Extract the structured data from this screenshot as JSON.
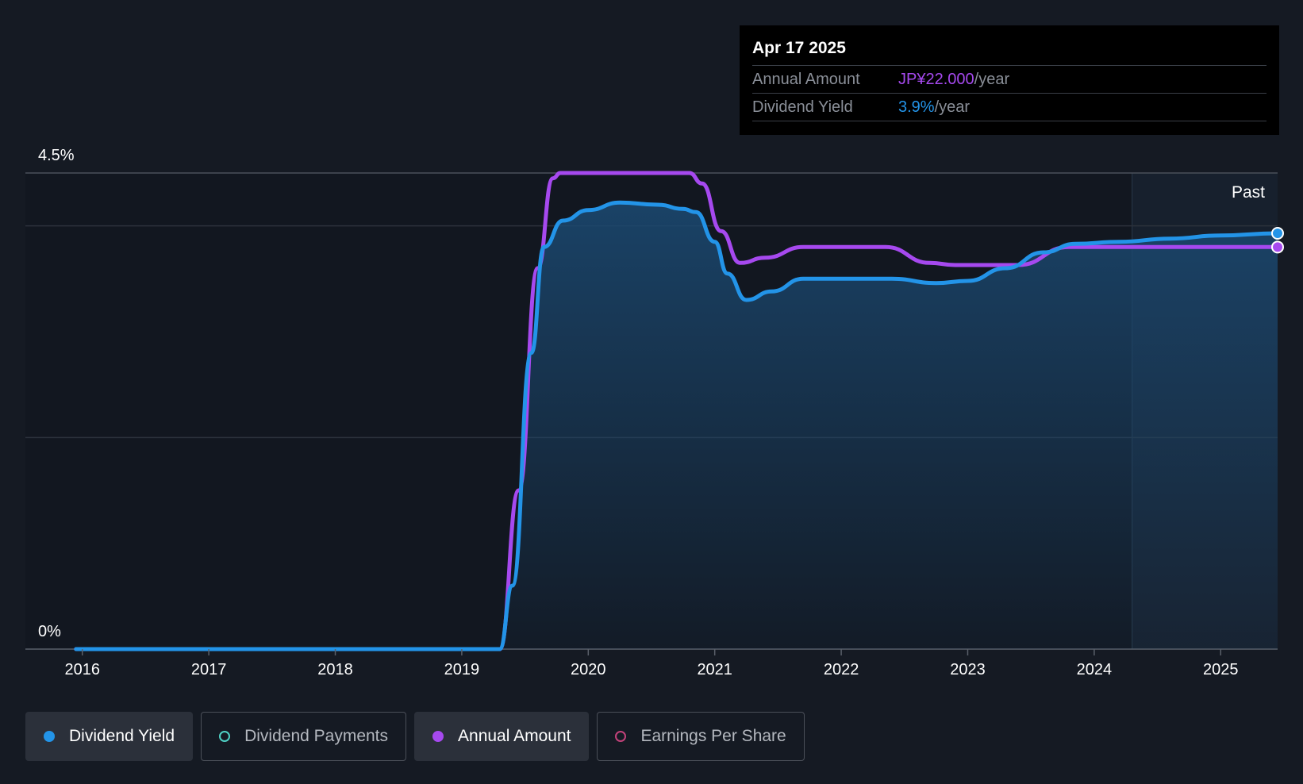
{
  "tooltip": {
    "date": "Apr 17 2025",
    "rows": [
      {
        "label": "Annual Amount",
        "value": "JP¥22.000",
        "unit": "/year"
      },
      {
        "label": "Dividend Yield",
        "value": "3.9%",
        "unit": "/year"
      }
    ]
  },
  "legend": [
    {
      "label": "Dividend Yield",
      "active": true,
      "filled": true,
      "color": "#2394e8"
    },
    {
      "label": "Dividend Payments",
      "active": false,
      "filled": false,
      "color": "#4fd1c5"
    },
    {
      "label": "Annual Amount",
      "active": true,
      "filled": true,
      "color": "#a649ef"
    },
    {
      "label": "Earnings Per Share",
      "active": false,
      "filled": false,
      "color": "#c2427a"
    }
  ],
  "colors": {
    "yield": "#2394e8",
    "amount": "#a649ef",
    "grid": "#2c323c",
    "axis": "#5a606a",
    "background": "#151a23"
  },
  "chart_data": {
    "type": "line",
    "title": "",
    "xlabel": "",
    "ylabel": "",
    "y_tick_labels": [
      "4.5%",
      "0%"
    ],
    "y_ticks": [
      4.5,
      0
    ],
    "ylim": [
      0,
      4.5
    ],
    "xlim": [
      2015.55,
      2025.45
    ],
    "x_ticks": [
      2016,
      2017,
      2018,
      2019,
      2020,
      2021,
      2022,
      2023,
      2024,
      2025
    ],
    "x_tick_labels": [
      "2016",
      "2017",
      "2018",
      "2019",
      "2020",
      "2021",
      "2022",
      "2023",
      "2024",
      "2025"
    ],
    "past_label": "Past",
    "past_region_start": 2024.3,
    "series": [
      {
        "name": "Dividend Yield",
        "fill": true,
        "points": [
          [
            2015.95,
            0
          ],
          [
            2019.3,
            0
          ],
          [
            2019.4,
            0.6
          ],
          [
            2019.55,
            2.8
          ],
          [
            2019.65,
            3.8
          ],
          [
            2019.8,
            4.05
          ],
          [
            2020.0,
            4.15
          ],
          [
            2020.25,
            4.22
          ],
          [
            2020.55,
            4.2
          ],
          [
            2020.75,
            4.16
          ],
          [
            2020.85,
            4.13
          ],
          [
            2021.0,
            3.85
          ],
          [
            2021.1,
            3.55
          ],
          [
            2021.25,
            3.3
          ],
          [
            2021.45,
            3.38
          ],
          [
            2021.7,
            3.5
          ],
          [
            2022.0,
            3.5
          ],
          [
            2022.4,
            3.5
          ],
          [
            2022.75,
            3.46
          ],
          [
            2023.0,
            3.48
          ],
          [
            2023.3,
            3.6
          ],
          [
            2023.6,
            3.75
          ],
          [
            2023.85,
            3.83
          ],
          [
            2024.2,
            3.85
          ],
          [
            2024.6,
            3.88
          ],
          [
            2025.0,
            3.91
          ],
          [
            2025.45,
            3.93
          ]
        ]
      },
      {
        "name": "Annual Amount",
        "fill": false,
        "points": [
          [
            2015.95,
            0
          ],
          [
            2019.3,
            0
          ],
          [
            2019.45,
            1.5
          ],
          [
            2019.6,
            3.6
          ],
          [
            2019.72,
            4.45
          ],
          [
            2019.78,
            4.5
          ],
          [
            2020.8,
            4.5
          ],
          [
            2020.9,
            4.4
          ],
          [
            2021.05,
            3.95
          ],
          [
            2021.2,
            3.65
          ],
          [
            2021.4,
            3.7
          ],
          [
            2021.7,
            3.8
          ],
          [
            2022.0,
            3.8
          ],
          [
            2022.35,
            3.8
          ],
          [
            2022.7,
            3.65
          ],
          [
            2022.9,
            3.63
          ],
          [
            2023.4,
            3.63
          ],
          [
            2023.8,
            3.8
          ],
          [
            2024.2,
            3.8
          ],
          [
            2025.45,
            3.8
          ]
        ]
      }
    ]
  }
}
